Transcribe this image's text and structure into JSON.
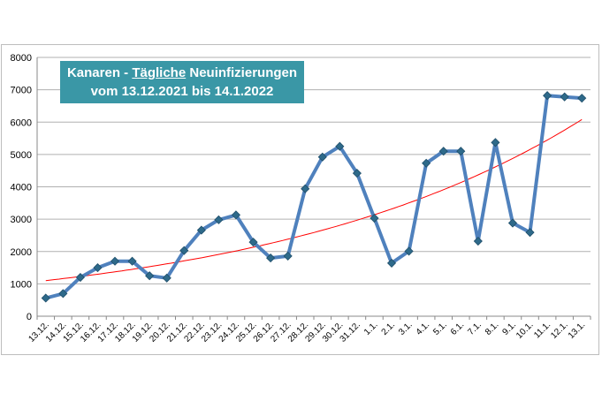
{
  "chart_data": {
    "type": "line",
    "title": {
      "pre": "Kanaren - ",
      "underlined": "Tägliche",
      "post": " Neuinfizierungen",
      "line2": "vom 13.12.2021 bis 14.1.2022"
    },
    "ylim": [
      0,
      8000
    ],
    "yticks": [
      0,
      1000,
      2000,
      3000,
      4000,
      5000,
      6000,
      7000,
      8000
    ],
    "grid": true,
    "categories": [
      "13.12.",
      "14.12.",
      "15.12.",
      "16.12.",
      "17.12.",
      "18.12.",
      "19.12.",
      "20.12.",
      "21.12.",
      "22.12.",
      "23.12.",
      "24.12.",
      "25.12.",
      "26.12.",
      "27.12.",
      "28.12.",
      "29.12.",
      "30.12.",
      "31.12.",
      "1.1.",
      "2.1.",
      "3.1.",
      "4.1.",
      "5.1.",
      "6.1.",
      "7.1.",
      "8.1.",
      "9.1.",
      "10.1.",
      "11.1.",
      "12.1.",
      "13.1."
    ],
    "series": [
      {
        "values": [
          560,
          700,
          1200,
          1500,
          1700,
          1700,
          1250,
          1180,
          2030,
          2660,
          2980,
          3130,
          2290,
          1800,
          1860,
          3940,
          4920,
          5250,
          4420,
          3030,
          1640,
          2010,
          4730,
          5100,
          5100,
          2320,
          5370,
          2880,
          2590,
          6820,
          6780,
          6740
        ],
        "color": "#4f81bd",
        "marker": "diamond"
      }
    ],
    "trendline": {
      "type": "exponential",
      "start": 1100,
      "end": 6080,
      "color": "#ff0000"
    }
  }
}
